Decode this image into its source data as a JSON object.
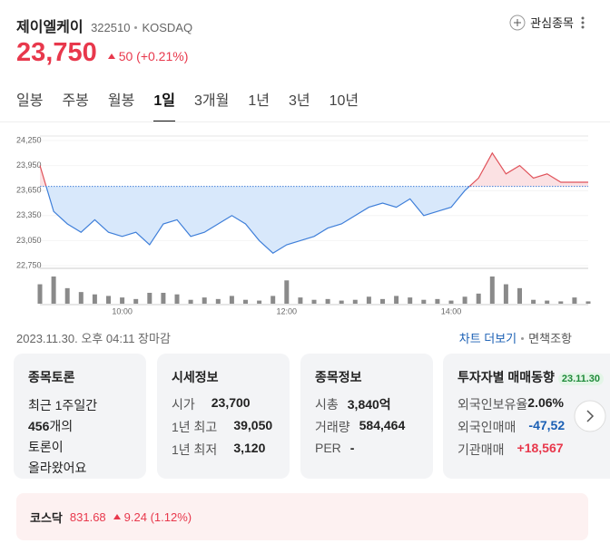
{
  "header": {
    "name": "제이엘케이",
    "code": "322510",
    "market": "KOSDAQ",
    "watch": "관심종목"
  },
  "price": {
    "value": "23,750",
    "change": "50",
    "change_pct": "(+0.21%)"
  },
  "tabs": [
    "일봉",
    "주봉",
    "월봉",
    "1일",
    "3개월",
    "1년",
    "3년",
    "10년"
  ],
  "active_tab": 3,
  "chart_data": {
    "type": "line",
    "categories": [
      null,
      null,
      null,
      null,
      null,
      null,
      "10:00",
      null,
      null,
      null,
      null,
      null,
      null,
      null,
      null,
      null,
      null,
      null,
      "12:00",
      null,
      null,
      null,
      null,
      null,
      null,
      null,
      null,
      null,
      null,
      null,
      "14:00",
      null,
      null,
      null,
      null,
      null,
      null,
      null,
      null,
      null,
      null
    ],
    "values": [
      23950,
      23400,
      23250,
      23150,
      23300,
      23150,
      23100,
      23150,
      23000,
      23250,
      23300,
      23100,
      23150,
      23250,
      23350,
      23250,
      23050,
      22900,
      23000,
      23050,
      23100,
      23200,
      23250,
      23350,
      23450,
      23500,
      23450,
      23550,
      23350,
      23400,
      23450,
      23650,
      23800,
      24100,
      23850,
      23950,
      23800,
      23850,
      23750,
      23750,
      23750
    ],
    "volume": [
      25,
      35,
      20,
      15,
      12,
      10,
      8,
      6,
      14,
      14,
      12,
      5,
      8,
      6,
      10,
      5,
      4,
      10,
      30,
      8,
      5,
      6,
      4,
      5,
      9,
      6,
      10,
      8,
      5,
      6,
      4,
      9,
      13,
      35,
      25,
      20,
      5,
      4,
      3,
      8,
      3
    ],
    "base": 23700,
    "ylim": [
      22750,
      24250
    ],
    "yticks": [
      {
        "value": 22750,
        "label": "22,750"
      },
      {
        "value": 23050,
        "label": "23,050"
      },
      {
        "value": 23350,
        "label": "23,350"
      },
      {
        "value": 23650,
        "label": "23,650"
      },
      {
        "value": 23950,
        "label": "23,950"
      },
      {
        "value": 24250,
        "label": "24,250"
      }
    ],
    "up_color": "#e0525a",
    "down_color": "#3f7fd9"
  },
  "status": {
    "time": "2023.11.30. 오후 04:11 장마감",
    "more": "차트 더보기",
    "disclaimer": "면책조항"
  },
  "cards": {
    "discussion": {
      "title": "종목토론",
      "line1": "최근 1주일간",
      "count": "456",
      "count_suffix": "개의",
      "line3": "토론이",
      "line4": "올라왔어요"
    },
    "quote": {
      "title": "시세정보",
      "rows": [
        [
          "시가",
          "23,700"
        ],
        [
          "1년 최고",
          "39,050"
        ],
        [
          "1년 최저",
          "3,120"
        ]
      ]
    },
    "info": {
      "title": "종목정보",
      "rows": [
        [
          "시총",
          "3,840억"
        ],
        [
          "거래량",
          "584,464"
        ],
        [
          "PER",
          "-"
        ]
      ]
    },
    "investor": {
      "title": "투자자별 매매동향",
      "badge": "23.11.30",
      "rows": [
        [
          "외국인보유율",
          "2.06%"
        ],
        [
          "외국인매매",
          "-47,52"
        ],
        [
          "기관매매",
          "+18,567"
        ]
      ]
    }
  },
  "index": {
    "name": "코스닥",
    "value": "831.68",
    "change": "9.24",
    "change_pct": "(1.12%)"
  }
}
